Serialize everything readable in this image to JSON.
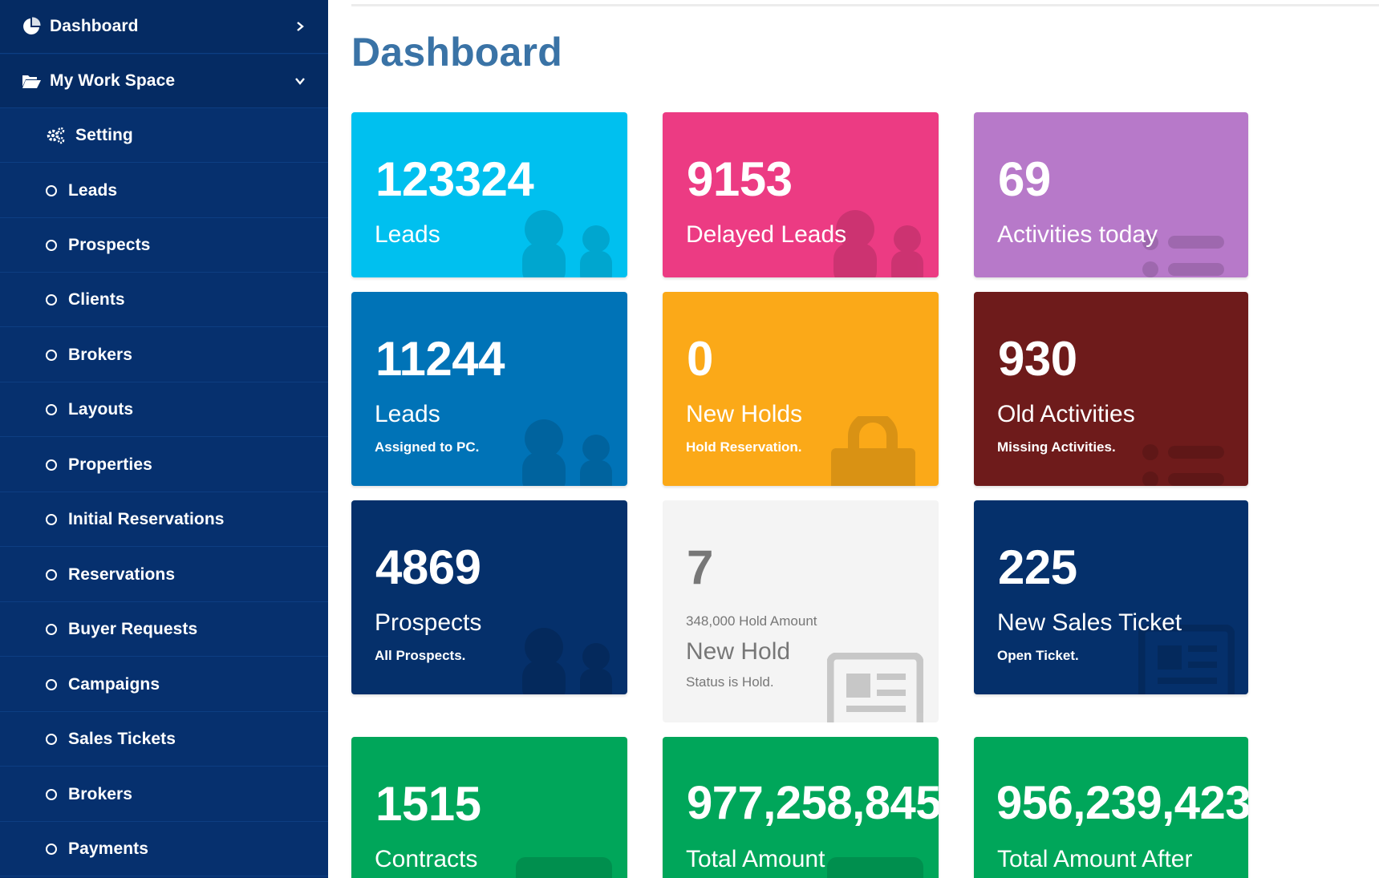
{
  "sidebar": {
    "dashboard": {
      "label": "Dashboard",
      "icon": "pie-chart-icon"
    },
    "workspace": {
      "label": "My Work Space",
      "icon": "folder-open-icon"
    },
    "setting": {
      "label": "Setting",
      "icon": "gears-icon"
    },
    "items": [
      "Leads",
      "Prospects",
      "Clients",
      "Brokers",
      "Layouts",
      "Properties",
      "Initial Reservations",
      "Reservations",
      "Buyer Requests",
      "Campaigns",
      "Sales Tickets",
      "Brokers",
      "Payments"
    ]
  },
  "page": {
    "title": "Dashboard"
  },
  "tiles": {
    "leads": {
      "num": "123324",
      "title": "Leads",
      "color": "#00c0ef",
      "icon": "users-icon"
    },
    "delayed": {
      "num": "9153",
      "title": "Delayed Leads",
      "color": "#ec3b83",
      "icon": "users-icon"
    },
    "activities": {
      "num": "69",
      "title": "Activities today",
      "color": "#b779c9",
      "icon": "list-icon"
    },
    "assigned": {
      "num": "11244",
      "title": "Leads",
      "sub": "Assigned to PC.",
      "color": "#0073b7",
      "icon": "users-icon"
    },
    "holds": {
      "num": "0",
      "title": "New Holds",
      "sub": "Hold Reservation.",
      "color": "#fba918",
      "icon": "lock-icon"
    },
    "old": {
      "num": "930",
      "title": "Old Activities",
      "sub": "Missing Activities.",
      "color": "#6e1b1b",
      "icon": "list-icon"
    },
    "prospects": {
      "num": "4869",
      "title": "Prospects",
      "sub": "All Prospects.",
      "color": "#05306b",
      "icon": "users-icon"
    },
    "newhold": {
      "num": "7",
      "amount": "348,000 Hold Amount",
      "title": "New Hold",
      "sub": "Status is Hold.",
      "color": "#f4f4f4",
      "icon": "newspaper-icon"
    },
    "tickets": {
      "num": "225",
      "title": "New Sales Ticket",
      "sub": "Open Ticket.",
      "color": "#05306b",
      "icon": "newspaper-icon"
    },
    "contracts": {
      "num": "1515",
      "title": "Contracts",
      "color": "#00a65a",
      "icon": "file-icon"
    },
    "total": {
      "num": "977,258,845",
      "title": "Total Amount",
      "color": "#00a65a",
      "icon": "money-icon"
    },
    "after": {
      "num": "956,239,423",
      "title": "Total Amount After",
      "color": "#00a65a",
      "icon": "money-icon"
    }
  }
}
